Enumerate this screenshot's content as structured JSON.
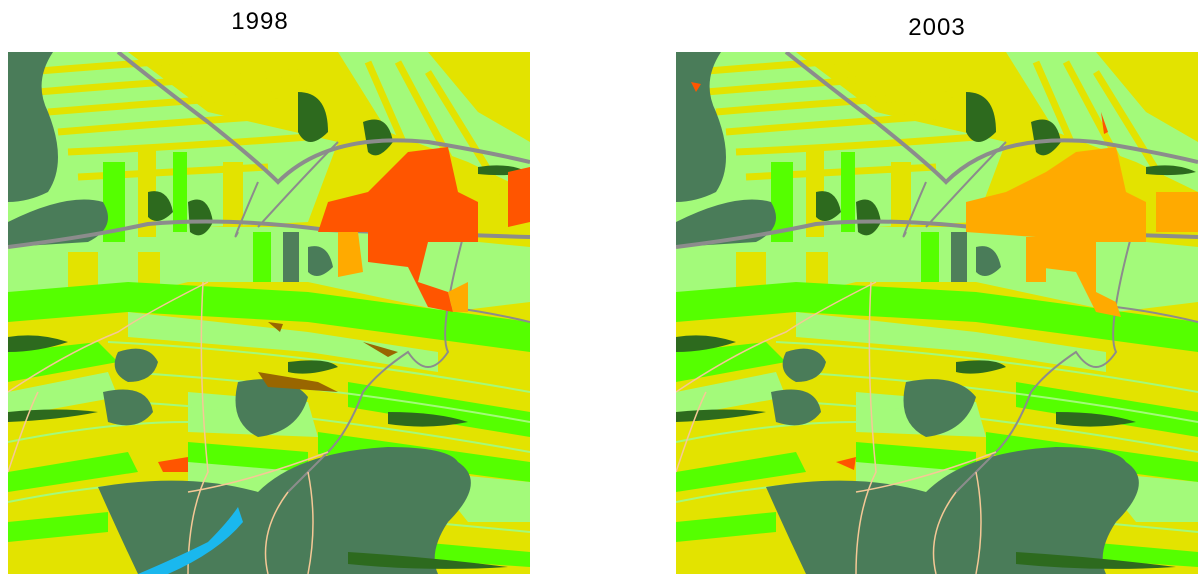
{
  "panels": [
    {
      "title": "1998"
    },
    {
      "title": "2003"
    }
  ]
}
